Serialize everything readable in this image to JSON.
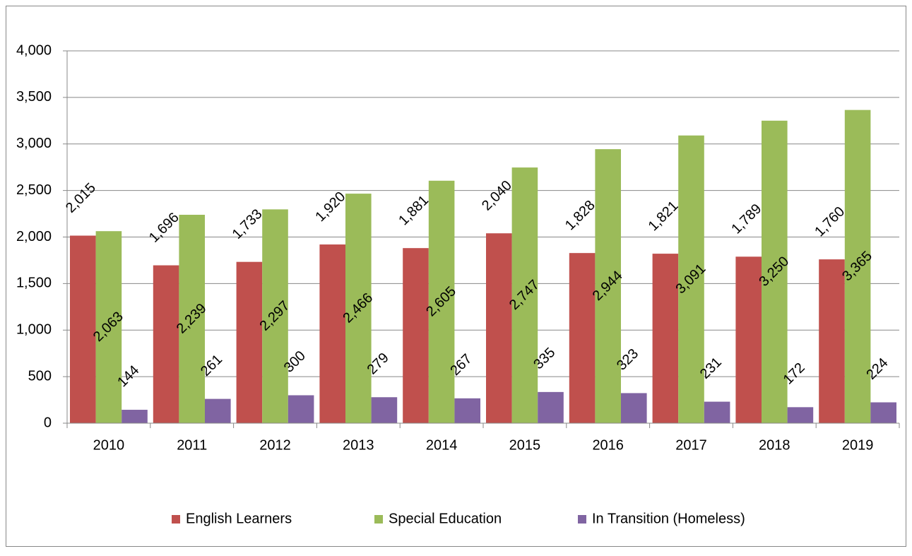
{
  "chart_data": {
    "type": "bar",
    "categories": [
      "2010",
      "2011",
      "2012",
      "2013",
      "2014",
      "2015",
      "2016",
      "2017",
      "2018",
      "2019"
    ],
    "series": [
      {
        "name": "English Learners",
        "color": "#c0504d",
        "values": [
          2015,
          1696,
          1733,
          1920,
          1881,
          2040,
          1828,
          1821,
          1789,
          1760
        ],
        "value_labels": [
          "2,015",
          "1,696",
          "1,733",
          "1,920",
          "1,881",
          "2,040",
          "1,828",
          "1,821",
          "1,789",
          "1,760"
        ]
      },
      {
        "name": "Special Education",
        "color": "#9bbb59",
        "values": [
          2063,
          2239,
          2297,
          2466,
          2605,
          2747,
          2944,
          3091,
          3250,
          3365
        ],
        "value_labels": [
          "2,063",
          "2,239",
          "2,297",
          "2,466",
          "2,605",
          "2,747",
          "2,944",
          "3,091",
          "3,250",
          "3,365"
        ]
      },
      {
        "name": "In Transition (Homeless)",
        "color": "#8064a2",
        "values": [
          144,
          261,
          300,
          279,
          267,
          335,
          323,
          231,
          172,
          224
        ],
        "value_labels": [
          "144",
          "261",
          "300",
          "279",
          "267",
          "335",
          "323",
          "231",
          "172",
          "224"
        ]
      }
    ],
    "ylim": [
      0,
      4000
    ],
    "yticks": [
      0,
      500,
      {
        "value": 1000,
        "label": "1,000"
      },
      {
        "value": 1500,
        "label": "1,500"
      },
      {
        "value": 2000,
        "label": "2,000"
      },
      {
        "value": 2500,
        "label": "2,500"
      },
      {
        "value": 3000,
        "label": "3,000"
      },
      {
        "value": 3500,
        "label": "3,500"
      },
      {
        "value": 4000,
        "label": "4,000"
      }
    ],
    "grid": true,
    "legend": "bottom"
  }
}
